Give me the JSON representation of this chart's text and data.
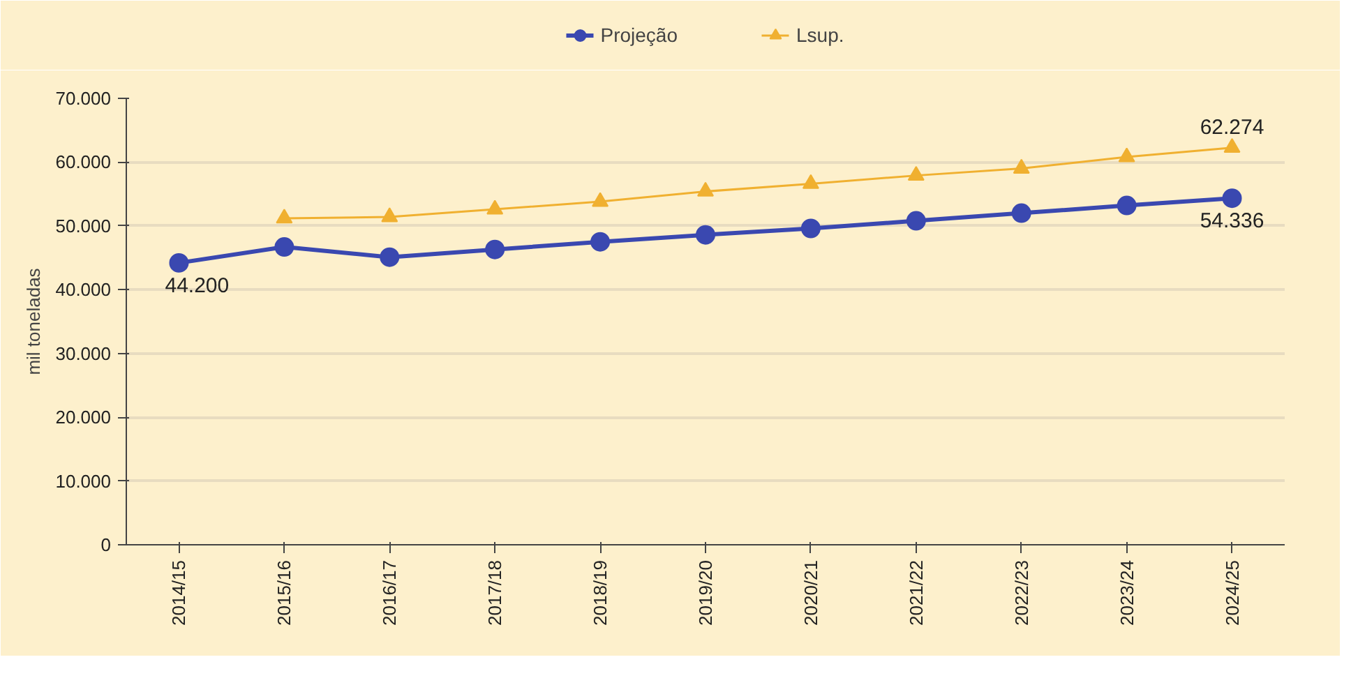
{
  "chart_data": {
    "type": "line",
    "ylabel": "mil toneladas",
    "categories": [
      "2014/15",
      "2015/16",
      "2016/17",
      "2017/18",
      "2018/19",
      "2019/20",
      "2020/21",
      "2021/22",
      "2022/23",
      "2023/24",
      "2024/25"
    ],
    "series": [
      {
        "name": "Projeção",
        "color": "#3a48b0",
        "marker": "circle",
        "values": [
          44200,
          46700,
          45100,
          46300,
          47500,
          48600,
          49600,
          50800,
          52000,
          53200,
          54336
        ],
        "value_labels": [
          "44.200",
          null,
          null,
          null,
          null,
          null,
          null,
          null,
          null,
          null,
          "54.336"
        ]
      },
      {
        "name": "Lsup.",
        "color": "#f0b030",
        "marker": "triangle",
        "values": [
          null,
          51200,
          51400,
          52600,
          53800,
          55400,
          56600,
          57900,
          59000,
          60800,
          62274
        ],
        "value_labels": [
          null,
          null,
          null,
          null,
          null,
          null,
          null,
          null,
          null,
          null,
          "62.274"
        ]
      }
    ],
    "ylim": [
      0,
      70000
    ],
    "yticks": [
      {
        "value": 0,
        "label": "0"
      },
      {
        "value": 10000,
        "label": "10.000"
      },
      {
        "value": 20000,
        "label": "20.000"
      },
      {
        "value": 30000,
        "label": "30.000"
      },
      {
        "value": 40000,
        "label": "40.000"
      },
      {
        "value": 50000,
        "label": "50.000"
      },
      {
        "value": 60000,
        "label": "60.000"
      },
      {
        "value": 70000,
        "label": "70.000"
      }
    ],
    "grid": "y",
    "legend": "top"
  }
}
